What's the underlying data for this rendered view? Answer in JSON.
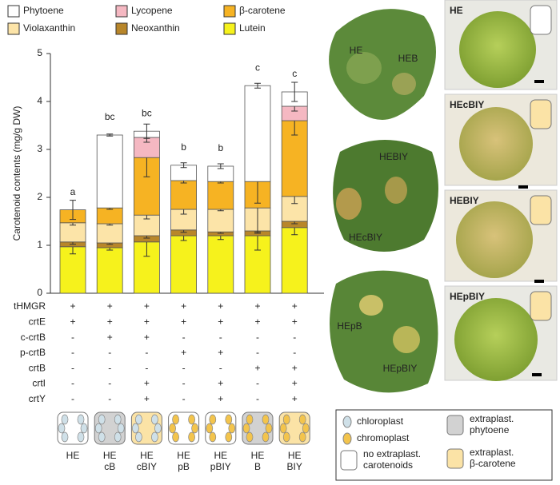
{
  "chart_data": {
    "type": "stacked-bar",
    "y_label": "Carotenoid contents (mg/g DW)",
    "categories": [
      [
        "HE"
      ],
      [
        "HE",
        "cB"
      ],
      [
        "HE",
        "cBIY"
      ],
      [
        "HE",
        "pB"
      ],
      [
        "HE",
        "pBIY"
      ],
      [
        "HE",
        "B"
      ],
      [
        "HE",
        "BIY"
      ]
    ],
    "ylim": [
      0,
      5
    ],
    "yticks": [
      0,
      1,
      2,
      3,
      4,
      5
    ],
    "series": [
      {
        "name": "Lutein",
        "color": "#f6f21c",
        "values": [
          0.97,
          0.95,
          1.07,
          1.2,
          1.2,
          1.2,
          1.37
        ],
        "errors": [
          0.15,
          0.05,
          0.3,
          0.1,
          0.08,
          0.3,
          0.15
        ]
      },
      {
        "name": "Neoxanthin",
        "color": "#b8862a",
        "values": [
          0.1,
          0.1,
          0.13,
          0.12,
          0.08,
          0.1,
          0.13
        ],
        "errors": [
          0.05,
          0.03,
          0.05,
          0.05,
          0.03,
          0.05,
          0.05
        ]
      },
      {
        "name": "Violaxanthin",
        "color": "#fce4a8",
        "values": [
          0.4,
          0.4,
          0.43,
          0.43,
          0.47,
          0.48,
          0.52
        ],
        "errors": [
          0.05,
          0.03,
          0.08,
          0.1,
          0.03,
          0.5,
          0.15
        ]
      },
      {
        "name": "β-carotene",
        "color": "#f6b323",
        "values": [
          0.27,
          0.33,
          1.2,
          0.6,
          0.58,
          0.55,
          1.58
        ],
        "errors": [
          0.2,
          0.03,
          0.4,
          0.05,
          0.03,
          0.45,
          0.3
        ]
      },
      {
        "name": "Lycopene",
        "color": "#f5b8c2",
        "values": [
          0,
          0,
          0.42,
          0,
          0,
          0,
          0.3
        ],
        "errors": [
          null,
          null,
          0.1,
          null,
          null,
          null,
          0.1
        ]
      },
      {
        "name": "Phytoene",
        "color": "#ffffff",
        "values": [
          0,
          1.52,
          0.13,
          0.32,
          0.32,
          2.0,
          0.3
        ],
        "errors": [
          null,
          0.02,
          0.15,
          0.05,
          0.05,
          0.05,
          0.2
        ]
      }
    ],
    "significance": [
      "a",
      "bc",
      "bc",
      "b",
      "b",
      "c",
      "c"
    ],
    "genes": [
      {
        "name": "tHMGR",
        "color": "#8e3fa0",
        "marks": [
          "+",
          "+",
          "+",
          "+",
          "+",
          "+",
          "+"
        ]
      },
      {
        "name": "crtE",
        "color": "#3d6fc0",
        "marks": [
          "+",
          "+",
          "+",
          "+",
          "+",
          "+",
          "+"
        ]
      },
      {
        "name": "c-crtB",
        "color": "#3d6fc0",
        "marks": [
          "-",
          "+",
          "+",
          "-",
          "-",
          "-",
          "-"
        ]
      },
      {
        "name": "p-crtB",
        "color": "#3d6fc0",
        "marks": [
          "-",
          "-",
          "-",
          "+",
          "+",
          "-",
          "-"
        ]
      },
      {
        "name": "crtB",
        "color": "#3d6fc0",
        "marks": [
          "-",
          "-",
          "-",
          "-",
          "-",
          "+",
          "+"
        ]
      },
      {
        "name": "crtI",
        "color": "#3d6fc0",
        "marks": [
          "-",
          "-",
          "+",
          "-",
          "+",
          "-",
          "+"
        ]
      },
      {
        "name": "crtY",
        "color": "#3d6fc0",
        "marks": [
          "-",
          "-",
          "+",
          "-",
          "+",
          "-",
          "+"
        ]
      }
    ]
  },
  "leaf_labels": [
    "HE",
    "HEB",
    "HEBIY",
    "HEcBIY",
    "HEpB",
    "HEpBIY"
  ],
  "cell_labels": [
    "HE",
    "HEcBIY",
    "HEBIY",
    "HEpBIY"
  ],
  "cell_legend": [
    [
      "chloroplast"
    ],
    [
      "chromoplast"
    ],
    [
      "no extraplast.",
      "carotenoids"
    ],
    [
      "extraplast.",
      "phytoene"
    ],
    [
      "extraplast.",
      "β-carotene"
    ]
  ]
}
